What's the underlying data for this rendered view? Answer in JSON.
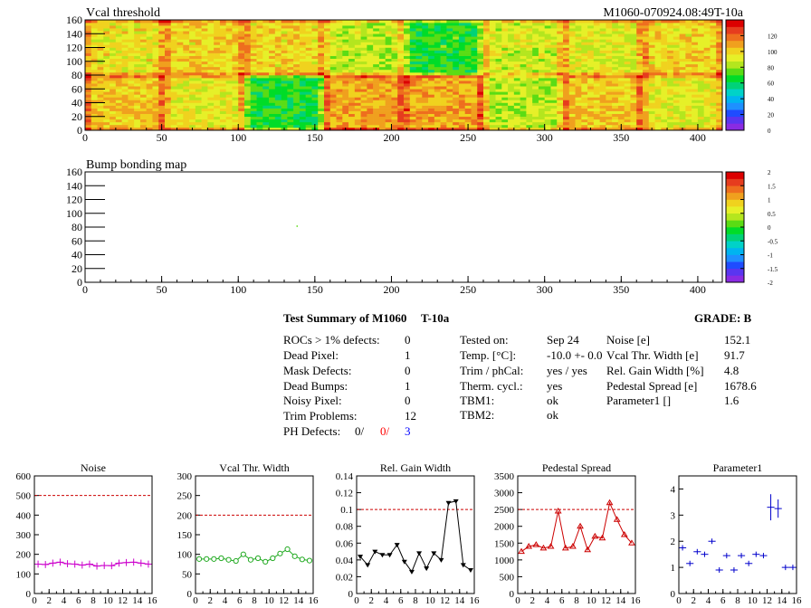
{
  "header": {
    "vcal_title": "Vcal threshold",
    "module_id": "M1060-070924.08:49T-10a",
    "bump_title": "Bump bonding map"
  },
  "colors": {
    "palette": [
      "#8a2be2",
      "#5a35f0",
      "#1f4cff",
      "#1e90ff",
      "#00b4f0",
      "#00d2c8",
      "#00d278",
      "#00dc28",
      "#5adc14",
      "#b4e61e",
      "#e6f028",
      "#f0d21e",
      "#f0a01e",
      "#ee6e1e",
      "#e63c1e",
      "#dc0000"
    ],
    "ref_line": "#cc0000",
    "noise": "#cc00cc",
    "vcal_width": "#22aa22",
    "gain_width": "#000000",
    "pedestal": "#cc0000",
    "parameter1": "#0000cc",
    "ph_red": "#ff0000",
    "ph_blue": "#0000ff"
  },
  "maps": [
    {
      "id": "vcal",
      "title": "Vcal threshold",
      "xlim": [
        0,
        416
      ],
      "ylim": [
        0,
        160
      ],
      "xticks": [
        "0",
        "50",
        "100",
        "150",
        "200",
        "250",
        "300",
        "350",
        "400"
      ],
      "yticks": [
        "0",
        "20",
        "40",
        "60",
        "80",
        "100",
        "120",
        "140",
        "160"
      ],
      "z_ticks": [
        "0",
        "20",
        "40",
        "60",
        "80",
        "100",
        "120"
      ],
      "zlim": [
        0,
        140
      ]
    },
    {
      "id": "bump",
      "title": "Bump bonding map",
      "xlim": [
        0,
        416
      ],
      "ylim": [
        0,
        160
      ],
      "xticks": [
        "0",
        "50",
        "100",
        "150",
        "200",
        "250",
        "300",
        "350",
        "400"
      ],
      "yticks": [
        "0",
        "20",
        "40",
        "60",
        "80",
        "100",
        "120",
        "140",
        "160"
      ],
      "z_ticks": [
        "-2",
        "-1.5",
        "-1",
        "-0.5",
        "0",
        "0.5",
        "1",
        "1.5",
        "2"
      ],
      "zlim": [
        -2,
        2
      ]
    }
  ],
  "summary": {
    "title": "Test Summary of M1060",
    "temp_label": "T-10a",
    "grade": "GRADE:  B",
    "defects": [
      {
        "label": "ROCs > 1% defects:",
        "value": "0"
      },
      {
        "label": "Dead Pixel:",
        "value": "1"
      },
      {
        "label": "Mask Defects:",
        "value": "0"
      },
      {
        "label": "Dead Bumps:",
        "value": "1"
      },
      {
        "label": "Noisy Pixel:",
        "value": "0"
      },
      {
        "label": "Trim Problems:",
        "value": "12"
      }
    ],
    "ph_defects": {
      "label": "PH Defects:",
      "v1": "0/",
      "v2": "0/",
      "v3": "3"
    },
    "conditions": [
      {
        "label": "Tested on:",
        "value": "Sep 24"
      },
      {
        "label": "Temp. [°C]:",
        "value": "-10.0 +- 0.0"
      },
      {
        "label": "Trim / phCal:",
        "value": "yes / yes"
      },
      {
        "label": "Therm. cycl.:",
        "value": "yes"
      },
      {
        "label": "TBM1:",
        "value": "ok"
      },
      {
        "label": "TBM2:",
        "value": "ok"
      }
    ],
    "results": [
      {
        "label": "Noise [e]",
        "value": "152.1"
      },
      {
        "label": "Vcal Thr. Width [e]",
        "value": "91.7"
      },
      {
        "label": "Rel. Gain Width [%]",
        "value": "4.8"
      },
      {
        "label": "Pedestal Spread [e]",
        "value": "1678.6"
      },
      {
        "label": "Parameter1 []",
        "value": "1.6"
      }
    ]
  },
  "chart_data": [
    {
      "type": "heatmap",
      "title": "Vcal threshold",
      "xlim": [
        0,
        416
      ],
      "ylim": [
        0,
        160
      ],
      "zlim": [
        0,
        140
      ],
      "roc_grid": {
        "columns": 8,
        "rows": 2
      },
      "roc_mean_top": [
        95,
        98,
        98,
        86,
        68,
        88,
        92,
        98
      ],
      "roc_mean_bottom": [
        102,
        94,
        66,
        108,
        108,
        84,
        102,
        92
      ]
    },
    {
      "type": "heatmap",
      "title": "Bump bonding map",
      "xlim": [
        0,
        416
      ],
      "ylim": [
        0,
        160
      ],
      "zlim": [
        -2,
        2
      ],
      "points": [
        {
          "x": 138,
          "y": 81,
          "z": 0
        }
      ]
    },
    {
      "type": "line",
      "title": "Noise",
      "x": [
        0,
        1,
        2,
        3,
        4,
        5,
        6,
        7,
        8,
        9,
        10,
        11,
        12,
        13,
        14,
        15
      ],
      "values": [
        150,
        148,
        155,
        160,
        152,
        150,
        145,
        150,
        140,
        143,
        142,
        155,
        158,
        160,
        155,
        150
      ],
      "errors": [
        18,
        18,
        18,
        18,
        18,
        18,
        18,
        18,
        18,
        18,
        18,
        18,
        18,
        18,
        18,
        18
      ],
      "marker": "plus",
      "reference": 500,
      "xlim": [
        0,
        16
      ],
      "ylim": [
        0,
        600
      ],
      "xticks": [
        "0",
        "2",
        "4",
        "6",
        "8",
        "10",
        "12",
        "14",
        "16"
      ],
      "yticks": [
        "0",
        "100",
        "200",
        "300",
        "400",
        "500",
        "600"
      ]
    },
    {
      "type": "line",
      "title": "Vcal Thr. Width",
      "x": [
        0,
        1,
        2,
        3,
        4,
        5,
        6,
        7,
        8,
        9,
        10,
        11,
        12,
        13,
        14,
        15
      ],
      "values": [
        88,
        88,
        88,
        90,
        86,
        83,
        100,
        86,
        90,
        81,
        90,
        102,
        113,
        95,
        87,
        84
      ],
      "marker": "circle",
      "reference": 200,
      "xlim": [
        0,
        16
      ],
      "ylim": [
        0,
        300
      ],
      "xticks": [
        "0",
        "2",
        "4",
        "6",
        "8",
        "10",
        "12",
        "14",
        "16"
      ],
      "yticks": [
        "0",
        "50",
        "100",
        "150",
        "200",
        "250",
        "300"
      ]
    },
    {
      "type": "line",
      "title": "Rel. Gain Width",
      "x": [
        0,
        1,
        2,
        3,
        4,
        5,
        6,
        7,
        8,
        9,
        10,
        11,
        12,
        13,
        14,
        15
      ],
      "values": [
        0.044,
        0.034,
        0.05,
        0.046,
        0.046,
        0.058,
        0.038,
        0.026,
        0.048,
        0.03,
        0.048,
        0.04,
        0.108,
        0.11,
        0.034,
        0.028
      ],
      "marker": "triangle-down",
      "reference": 0.1,
      "xlim": [
        0,
        16
      ],
      "ylim": [
        0,
        0.14
      ],
      "xticks": [
        "0",
        "2",
        "4",
        "6",
        "8",
        "10",
        "12",
        "14",
        "16"
      ],
      "yticks": [
        "0",
        "0.02",
        "0.04",
        "0.06",
        "0.08",
        "0.1",
        "0.12",
        "0.14"
      ]
    },
    {
      "type": "line",
      "title": "Pedestal Spread",
      "x": [
        0,
        1,
        2,
        3,
        4,
        5,
        6,
        7,
        8,
        9,
        10,
        11,
        12,
        13,
        14,
        15
      ],
      "values": [
        1250,
        1400,
        1450,
        1350,
        1400,
        2450,
        1350,
        1400,
        2000,
        1300,
        1700,
        1650,
        2700,
        2200,
        1750,
        1500
      ],
      "marker": "triangle-up",
      "reference": 2500,
      "xlim": [
        0,
        16
      ],
      "ylim": [
        0,
        3500
      ],
      "xticks": [
        "0",
        "2",
        "4",
        "6",
        "8",
        "10",
        "12",
        "14",
        "16"
      ],
      "yticks": [
        "0",
        "500",
        "1000",
        "1500",
        "2000",
        "2500",
        "3000",
        "3500"
      ]
    },
    {
      "type": "scatter",
      "title": "Parameter1",
      "x": [
        0,
        1,
        2,
        3,
        4,
        5,
        6,
        7,
        8,
        9,
        10,
        11,
        12,
        13,
        14,
        15
      ],
      "values": [
        1.75,
        1.15,
        1.6,
        1.5,
        2.0,
        0.9,
        1.45,
        0.9,
        1.45,
        1.15,
        1.5,
        1.45,
        3.3,
        3.25,
        1.0,
        1.0
      ],
      "errors": [
        0.05,
        0.03,
        0.03,
        0.03,
        0.1,
        0.03,
        0.03,
        0.03,
        0.03,
        0.03,
        0.03,
        0.03,
        0.5,
        0.35,
        0.03,
        0.03
      ],
      "marker": "plus",
      "xlim": [
        0,
        16
      ],
      "ylim": [
        0,
        4.5
      ],
      "xticks": [
        "0",
        "2",
        "4",
        "6",
        "8",
        "10",
        "12",
        "14",
        "16"
      ],
      "yticks": [
        "0",
        "1",
        "2",
        "3",
        "4"
      ]
    }
  ]
}
